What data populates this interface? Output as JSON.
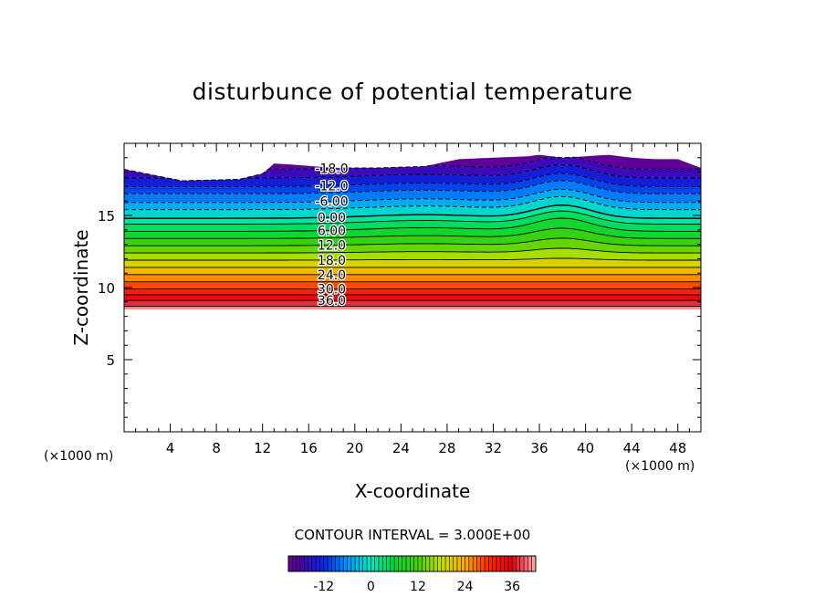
{
  "chart_data": {
    "type": "contour",
    "title": "disturbunce of potential temperature",
    "xlabel": "X-coordinate",
    "ylabel": "Z-coordinate",
    "x_unit": "(×1000 m)",
    "y_unit": "(×1000 m)",
    "xlim": [
      0,
      50
    ],
    "ylim": [
      0,
      20
    ],
    "x_ticks": [
      4,
      8,
      12,
      16,
      20,
      24,
      28,
      32,
      36,
      40,
      44,
      48
    ],
    "y_ticks": [
      5,
      10,
      15
    ],
    "contour_interval_label": "CONTOUR INTERVAL = 3.000E+00",
    "contour_interval": 3.0,
    "value_range": [
      -21,
      42
    ],
    "colorbar_ticks": [
      -12,
      0,
      12,
      24,
      36
    ],
    "contour_labels": [
      "-18.0",
      "-12.0",
      "-6.00",
      "0.00",
      "6.00",
      "12.0",
      "18.0",
      "24.0",
      "30.0",
      "36.0"
    ],
    "negative_contours": "dashed",
    "field_bottom_z": 8.5,
    "top_boundary": {
      "x": [
        0,
        5,
        10,
        12,
        13,
        15,
        18,
        22,
        26,
        29,
        32,
        35,
        36,
        38,
        40,
        42,
        44,
        46,
        48,
        50
      ],
      "z": [
        18.2,
        17.4,
        17.5,
        17.9,
        18.6,
        18.5,
        18.3,
        18.3,
        18.4,
        18.9,
        19.0,
        19.1,
        19.2,
        19.0,
        19.1,
        19.2,
        19.0,
        18.9,
        18.9,
        18.3
      ]
    },
    "level_centers": [
      {
        "value": -18,
        "z": 18.2
      },
      {
        "value": -15,
        "z": 17.6
      },
      {
        "value": -12,
        "z": 17.0
      },
      {
        "value": -9,
        "z": 16.5
      },
      {
        "value": -6,
        "z": 15.9
      },
      {
        "value": -3,
        "z": 15.4
      },
      {
        "value": 0,
        "z": 14.8
      },
      {
        "value": 3,
        "z": 14.4
      },
      {
        "value": 6,
        "z": 13.9
      },
      {
        "value": 9,
        "z": 13.4
      },
      {
        "value": 12,
        "z": 12.9
      },
      {
        "value": 15,
        "z": 12.4
      },
      {
        "value": 18,
        "z": 11.9
      },
      {
        "value": 21,
        "z": 11.4
      },
      {
        "value": 24,
        "z": 10.9
      },
      {
        "value": 27,
        "z": 10.4
      },
      {
        "value": 30,
        "z": 9.9
      },
      {
        "value": 33,
        "z": 9.5
      },
      {
        "value": 36,
        "z": 9.1
      },
      {
        "value": 39,
        "z": 8.7
      }
    ],
    "disturbance": [
      {
        "x_center": 26,
        "width": 7,
        "dz": 0.25
      },
      {
        "x_center": 38,
        "width": 3.5,
        "dz": 0.9
      }
    ],
    "grid": false,
    "legend": "colorbar-bottom"
  }
}
